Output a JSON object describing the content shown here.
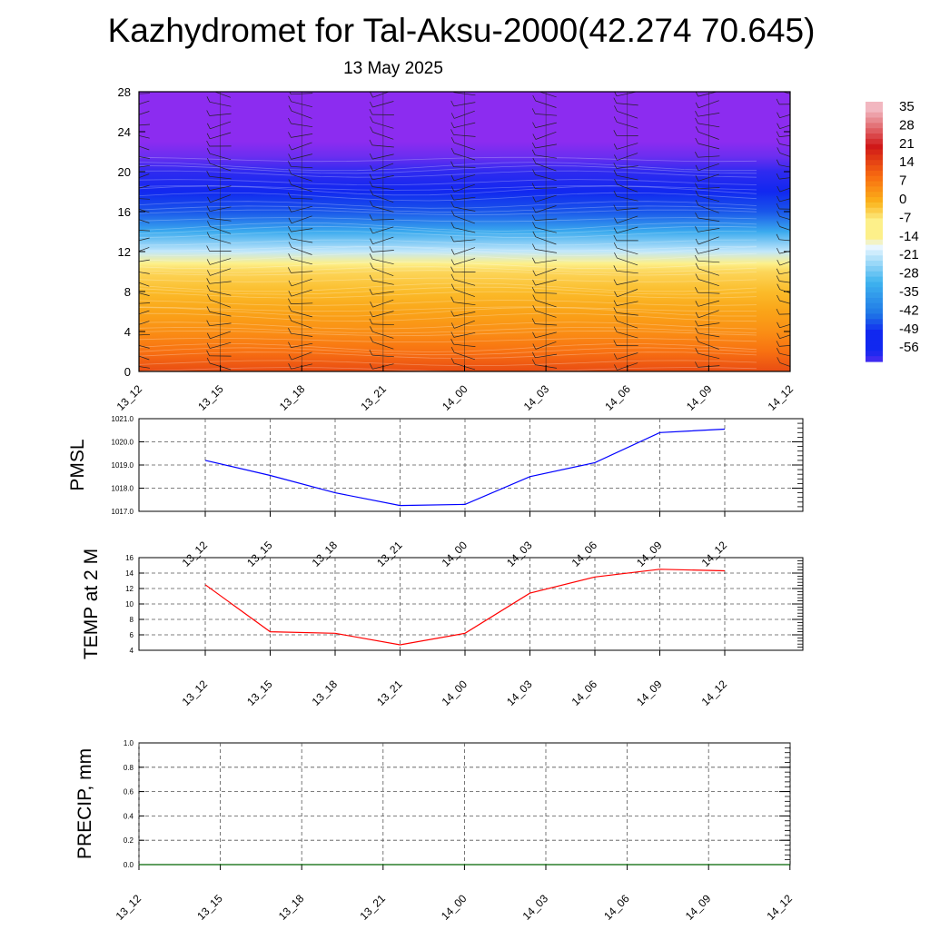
{
  "title": "Kazhydromet for Tal-Aksu-2000(42.274 70.645)",
  "subtitle": "13 May 2025",
  "chart_data": [
    {
      "type": "heatmap",
      "ylim": [
        0,
        28
      ],
      "y_ticks": [
        "0",
        "4",
        "8",
        "12",
        "16",
        "20",
        "24",
        "28"
      ],
      "x_ticks": [
        "13_12",
        "13_15",
        "13_18",
        "13_21",
        "14_00",
        "14_03",
        "14_06",
        "14_09",
        "14_12"
      ],
      "colorbar_labels": [
        "35",
        "28",
        "21",
        "14",
        "7",
        "0",
        "-7",
        "-14",
        "-21",
        "-28",
        "-35",
        "-42",
        "-49",
        "-56"
      ],
      "colorbar_range": [
        -60,
        38
      ],
      "temperature_profile": [
        {
          "level": 0,
          "value": 14
        },
        {
          "level": 2,
          "value": 9
        },
        {
          "level": 4,
          "value": 5
        },
        {
          "level": 6,
          "value": 2
        },
        {
          "level": 8,
          "value": -1
        },
        {
          "level": 10,
          "value": -4
        },
        {
          "level": 10.8,
          "value": -8
        },
        {
          "level": 12,
          "value": -20
        },
        {
          "level": 14,
          "value": -32
        },
        {
          "level": 16,
          "value": -45
        },
        {
          "level": 18,
          "value": -55
        },
        {
          "level": 20,
          "value": -58
        },
        {
          "level": 21.5,
          "value": -62
        },
        {
          "level": 23,
          "value": -70
        },
        {
          "level": 28,
          "value": -70
        }
      ],
      "colors": {
        "light_pink": "#f2b7c0",
        "red": "#d01818",
        "orange": "#f86a10",
        "orange_yellow": "#fbb31a",
        "yellow": "#fdf08a",
        "pale": "#e8f6ff",
        "light_blue": "#3fb4ef",
        "mid_blue": "#1f78e6",
        "blue": "#1128f0",
        "violet": "#6b2ef0",
        "purple": "#8c2cf0"
      }
    },
    {
      "type": "line",
      "ylabel": "PMSL",
      "ylim": [
        1017.0,
        1021.0
      ],
      "y_ticks": [
        "1017.0",
        "1018.0",
        "1019.0",
        "1020.0",
        "1021.0"
      ],
      "categories": [
        "13_12",
        "13_15",
        "13_18",
        "13_21",
        "14_00",
        "14_03",
        "14_06",
        "14_09",
        "14_12"
      ],
      "values": [
        1019.2,
        1018.55,
        1017.8,
        1017.25,
        1017.3,
        1018.5,
        1019.1,
        1020.4,
        1020.55
      ],
      "color": "#0000ff"
    },
    {
      "type": "line",
      "ylabel": "TEMP at 2 M",
      "ylim": [
        4,
        16
      ],
      "y_ticks": [
        "4",
        "6",
        "8",
        "10",
        "12",
        "14",
        "16"
      ],
      "categories": [
        "13_12",
        "13_15",
        "13_18",
        "13_21",
        "14_00",
        "14_03",
        "14_06",
        "14_09",
        "14_12"
      ],
      "values": [
        12.5,
        6.4,
        6.2,
        4.7,
        6.2,
        11.4,
        13.5,
        14.5,
        14.3
      ],
      "color": "#ff0000"
    },
    {
      "type": "line",
      "ylabel": "PRECIP, mm",
      "ylim": [
        0.0,
        1.0
      ],
      "y_ticks": [
        "0.0",
        "0.2",
        "0.4",
        "0.6",
        "0.8",
        "1.0"
      ],
      "x_ticks": [
        "13_12",
        "13_15",
        "13_18",
        "13_21",
        "14_00",
        "14_03",
        "14_06",
        "14_09",
        "14_12"
      ],
      "values": [
        0,
        0,
        0,
        0,
        0,
        0,
        0,
        0,
        0
      ],
      "color": "#006400"
    }
  ]
}
